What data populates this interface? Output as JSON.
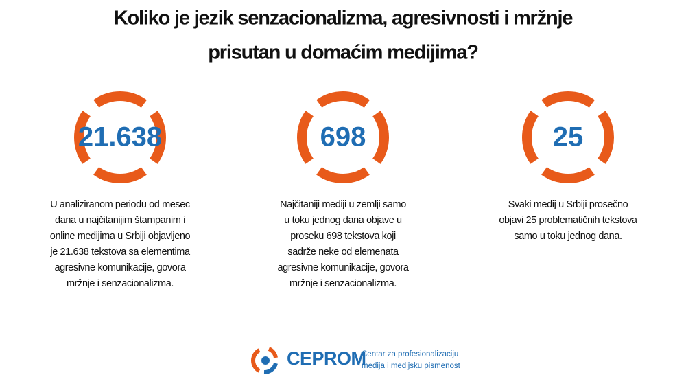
{
  "header": {
    "title_lines": [
      "Koliko je jezik senzacionalizma, agresivnosti i mržnje",
      "prisutan u domaćim medijima?"
    ]
  },
  "stats": [
    {
      "number": "21.638",
      "description_lines": [
        "U analiziranom periodu od mesec",
        "dana u najčitanijim štampanim i",
        "online medijima u Srbiji objavljeno",
        "je 21.638 tekstova sa elementima",
        "agresivne komunikacije, govora",
        "mržnje i senzacionalizma."
      ]
    },
    {
      "number": "698",
      "description_lines": [
        "Najčitaniji mediji u zemlji samo",
        "u toku jednog dana objave u",
        "proseku 698 tekstova koji",
        "sadrže neke od elemenata",
        "agresivne komunikacije, govora",
        "mržnje i senzacionalizma."
      ]
    },
    {
      "number": "25",
      "description_lines": [
        "Svaki medij u Srbiji prosečno",
        "objavi 25 problematičnih tekstova",
        "samo u toku jednog dana."
      ]
    }
  ],
  "footer": {
    "logo": "CEPROM",
    "tagline_lines": [
      "Centar za profesionalizaciju",
      "medija i medijsku pismenost"
    ]
  }
}
